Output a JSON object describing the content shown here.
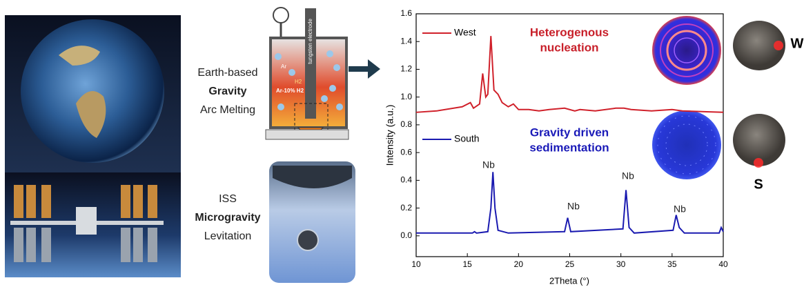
{
  "panels": {
    "earth_lines": [
      "Earth-based",
      "Gravity",
      "Arc Melting"
    ],
    "iss_lines": [
      "ISS",
      "Microgravity",
      "Levitation"
    ],
    "diagram_labels": [
      "tungsten electrode",
      "Ar",
      "H2",
      "Ar-10% H2"
    ],
    "sample_labels": [
      "W",
      "S"
    ]
  },
  "chart_data": {
    "type": "line",
    "xlabel": "2Theta (°)",
    "ylabel": "Intensity (a.u.)",
    "xlim": [
      10,
      40
    ],
    "xticks": [
      10,
      15,
      20,
      25,
      30,
      35,
      40
    ],
    "ylim": [
      -0.15,
      1.6
    ],
    "yticks": [
      {
        "value": 0,
        "label": "0.0"
      },
      0.2,
      0.4,
      0.6,
      0.8,
      {
        "value": 1,
        "label": "1.0"
      },
      1.2,
      1.4,
      1.6
    ],
    "grid": false,
    "series": [
      {
        "name": "West",
        "color": "#d0202a",
        "x": [
          10,
          12,
          14.5,
          15.3,
          15.6,
          16.2,
          16.5,
          16.8,
          17.0,
          17.3,
          17.6,
          18.0,
          18.4,
          19,
          19.5,
          20,
          21,
          22,
          23,
          24.5,
          25.5,
          26,
          27.5,
          29.5,
          30.3,
          31,
          33,
          35,
          36,
          40
        ],
        "values": [
          0.89,
          0.9,
          0.93,
          0.96,
          0.92,
          0.95,
          1.17,
          1.0,
          1.02,
          1.44,
          1.05,
          1.02,
          0.96,
          0.93,
          0.95,
          0.91,
          0.91,
          0.9,
          0.91,
          0.92,
          0.9,
          0.91,
          0.9,
          0.92,
          0.92,
          0.91,
          0.9,
          0.91,
          0.9,
          0.89
        ]
      },
      {
        "name": "South",
        "color": "#1a1ab0",
        "x": [
          10,
          15.5,
          15.7,
          15.9,
          17.0,
          17.3,
          17.5,
          17.7,
          18.0,
          19,
          24.5,
          24.8,
          25.1,
          30.2,
          30.5,
          30.8,
          31.3,
          35.1,
          35.4,
          35.7,
          36.2,
          39.6,
          39.8,
          40
        ],
        "values": [
          0.02,
          0.02,
          0.03,
          0.02,
          0.03,
          0.2,
          0.46,
          0.2,
          0.04,
          0.02,
          0.03,
          0.13,
          0.03,
          0.05,
          0.33,
          0.06,
          0.02,
          0.04,
          0.15,
          0.06,
          0.02,
          0.02,
          0.06,
          0.03
        ]
      }
    ],
    "annotations": [
      "Heterogenous",
      "nucleation",
      "Gravity driven",
      "sedimentation",
      "Nb",
      "Nb",
      "Nb",
      "Nb"
    ]
  }
}
